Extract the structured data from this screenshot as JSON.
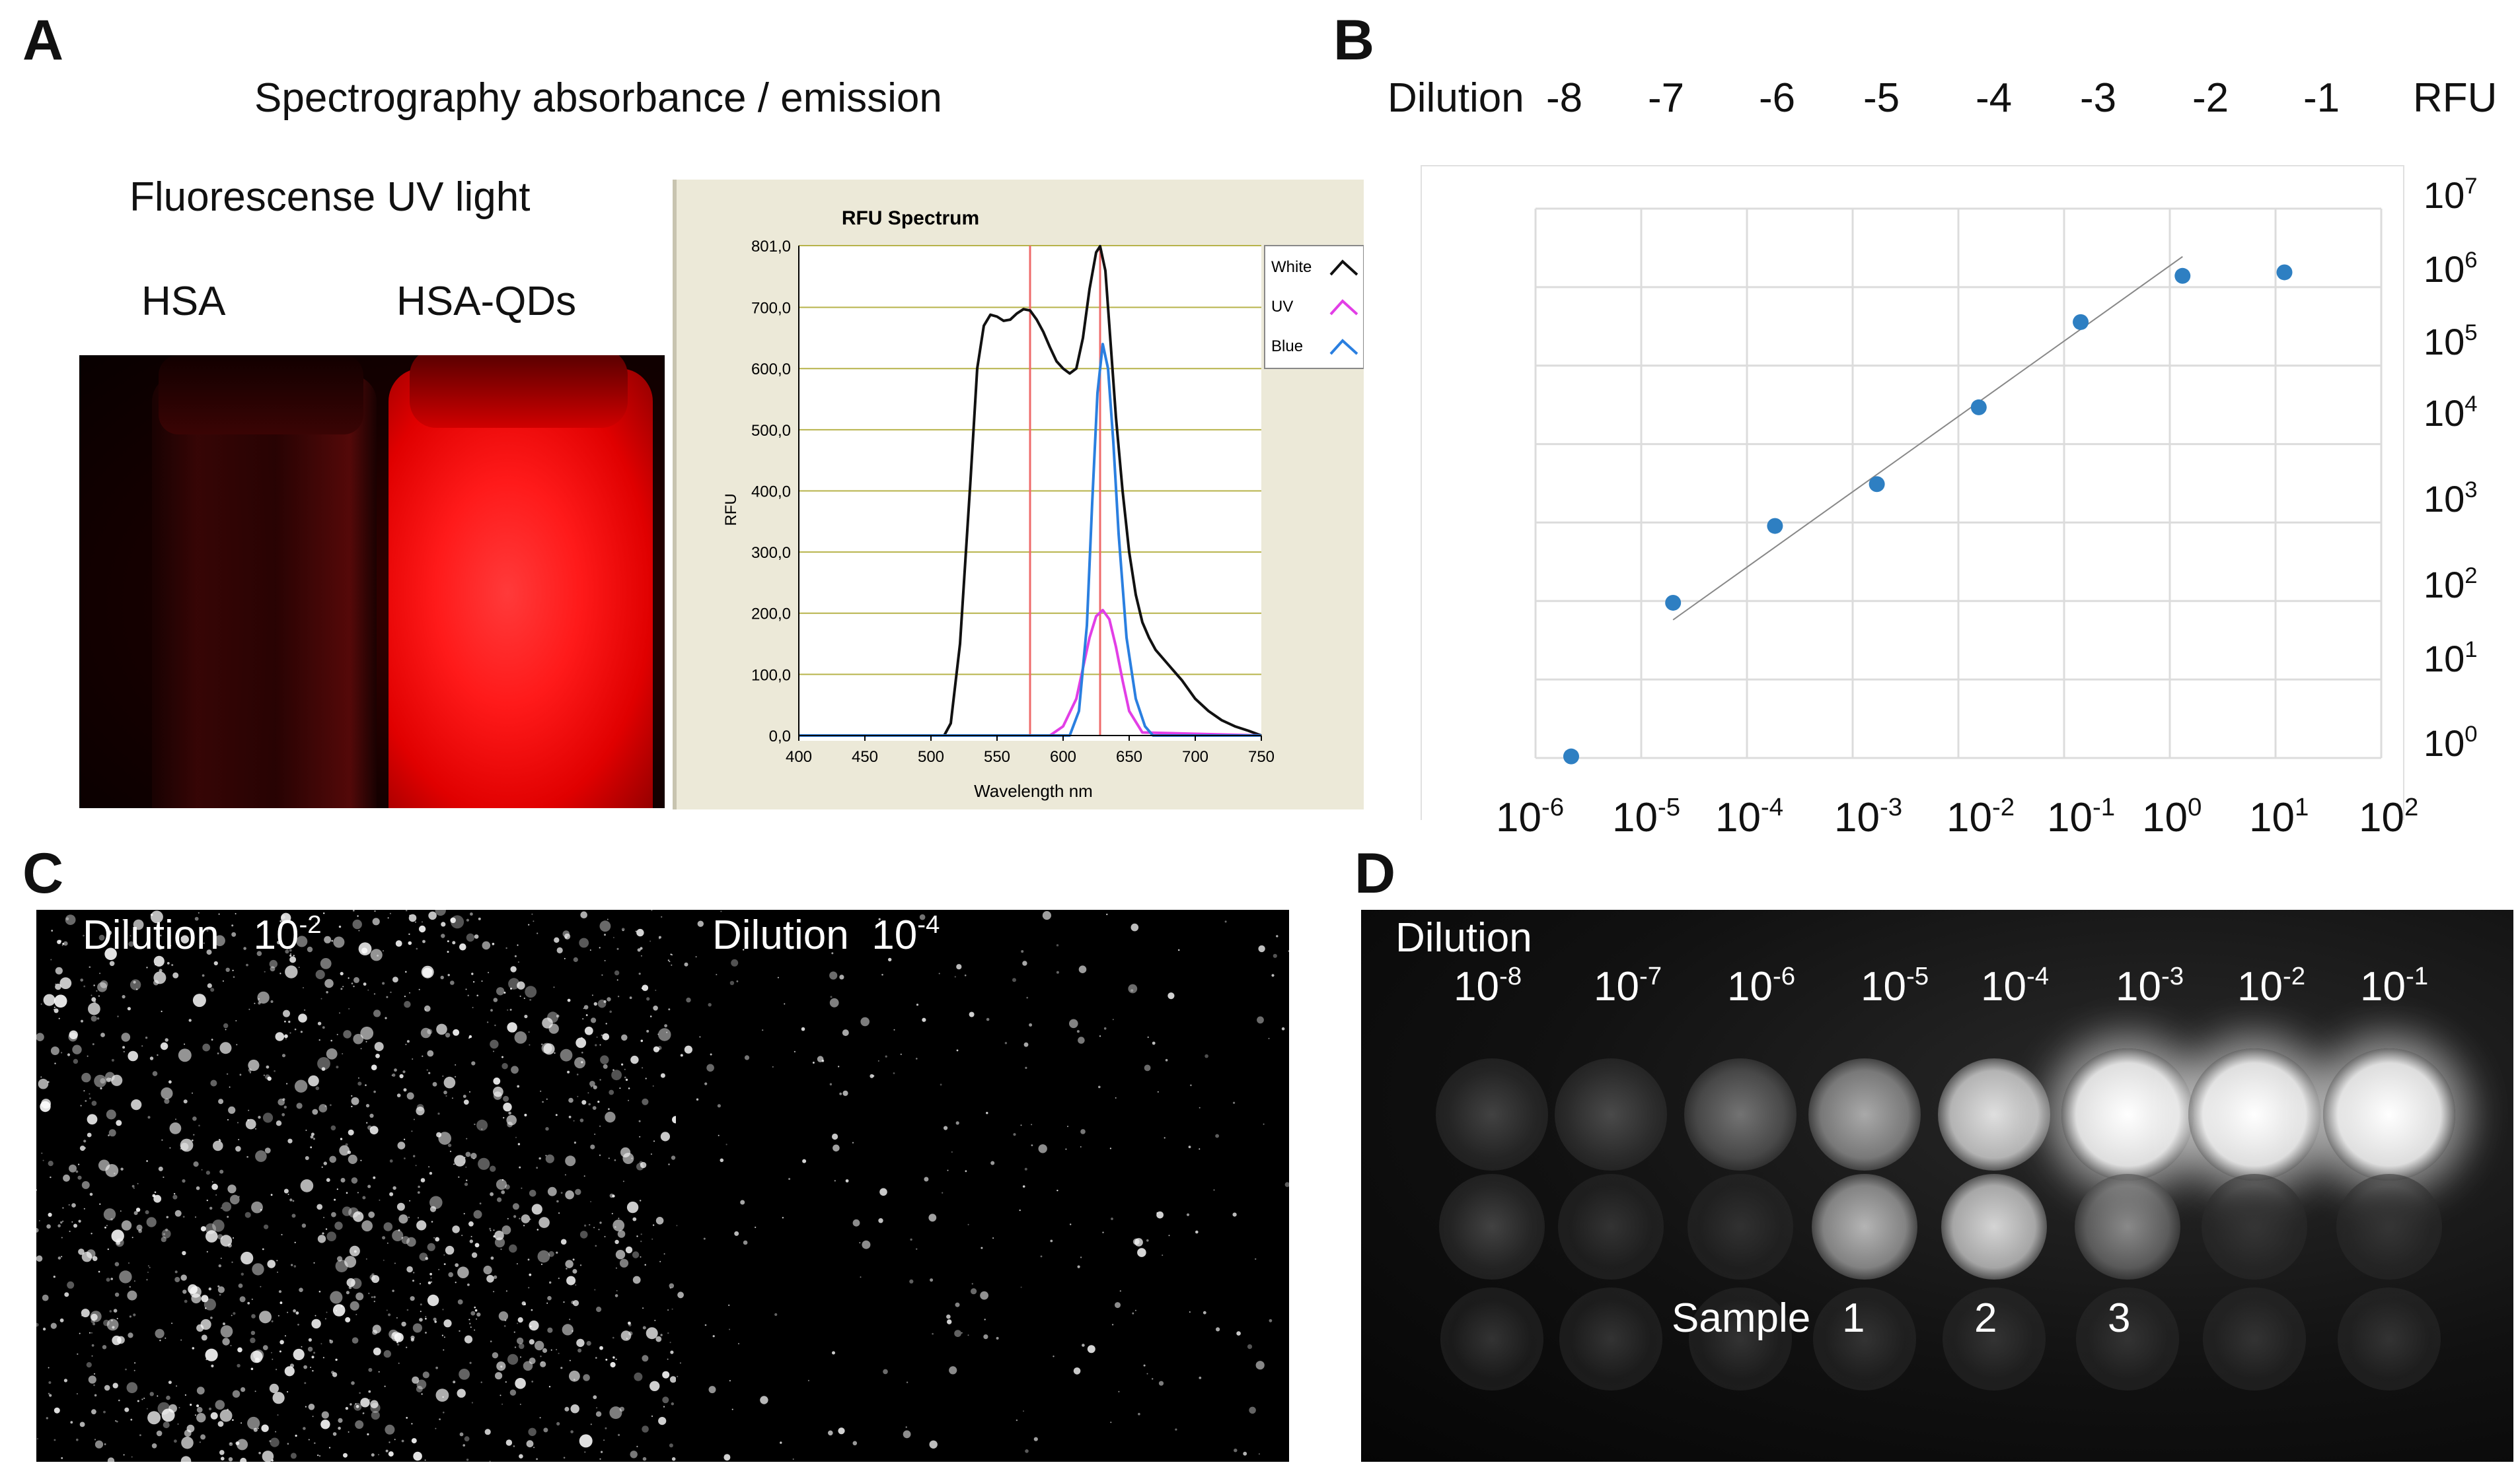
{
  "panels": {
    "a": "A",
    "b": "B",
    "c": "C",
    "d": "D"
  },
  "panel_a": {
    "heading": "Spectrography absorbance / emission",
    "photo_title": "Fluorescense UV light",
    "vial_labels": [
      "HSA",
      "HSA-QDs"
    ]
  },
  "chart_data": [
    {
      "type": "line",
      "title": "RFU Spectrum",
      "xlabel": "Wavelength nm",
      "ylabel": "RFU",
      "xlim": [
        400,
        750
      ],
      "ylim": [
        0,
        801
      ],
      "x_ticks": [
        "400",
        "450",
        "500",
        "550",
        "600",
        "650",
        "700",
        "750"
      ],
      "y_ticks": [
        "0,0",
        "100,0",
        "200,0",
        "300,0",
        "400,0",
        "500,0",
        "600,0",
        "700,0",
        "801,0"
      ],
      "vertical_markers": [
        575,
        628
      ],
      "legend": {
        "placement": "top-right",
        "entries": [
          "White",
          "UV",
          "Blue"
        ]
      },
      "series": [
        {
          "name": "White",
          "color": "#111111",
          "x": [
            400,
            510,
            515,
            522,
            530,
            535,
            540,
            545,
            550,
            555,
            560,
            565,
            570,
            575,
            580,
            585,
            590,
            595,
            600,
            605,
            610,
            615,
            620,
            625,
            628,
            632,
            636,
            640,
            645,
            650,
            655,
            660,
            665,
            670,
            680,
            690,
            700,
            710,
            720,
            730,
            740,
            750
          ],
          "y": [
            0,
            0,
            20,
            150,
            420,
            600,
            670,
            688,
            685,
            678,
            680,
            690,
            697,
            695,
            680,
            660,
            635,
            612,
            600,
            592,
            600,
            650,
            730,
            790,
            800,
            760,
            640,
            520,
            400,
            300,
            230,
            185,
            160,
            140,
            115,
            90,
            60,
            40,
            25,
            15,
            8,
            0
          ]
        },
        {
          "name": "UV",
          "color": "#e23ee6",
          "x": [
            400,
            590,
            600,
            610,
            615,
            620,
            625,
            630,
            635,
            640,
            645,
            650,
            660,
            750
          ],
          "y": [
            0,
            0,
            15,
            60,
            110,
            160,
            195,
            205,
            190,
            145,
            90,
            40,
            5,
            0
          ]
        },
        {
          "name": "Blue",
          "color": "#2a7fe0",
          "x": [
            400,
            605,
            612,
            618,
            622,
            626,
            630,
            634,
            638,
            642,
            648,
            655,
            662,
            668,
            750
          ],
          "y": [
            0,
            0,
            40,
            180,
            380,
            560,
            640,
            600,
            480,
            330,
            160,
            60,
            15,
            0,
            0
          ]
        }
      ]
    },
    {
      "type": "scatter",
      "xscale": "log",
      "yscale": "log",
      "x_ticks": [
        "-6",
        "-5",
        "-4",
        "-3",
        "-2",
        "-1",
        "0",
        "1",
        "2"
      ],
      "top_axis_label": "Dilution",
      "top_ticks": [
        "-8",
        "-7",
        "-6",
        "-5",
        "-4",
        "-3",
        "-2",
        "-1"
      ],
      "right_axis_label": "RFU",
      "y_ticks": [
        "7",
        "6",
        "5",
        "4",
        "3",
        "2",
        "1",
        "0"
      ],
      "grid": true,
      "points": [
        {
          "x": 1e-06,
          "y": 1
        },
        {
          "x": 1e-05,
          "y": 100
        },
        {
          "x": 0.0001,
          "y": 1000
        },
        {
          "x": 0.001,
          "y": 3500
        },
        {
          "x": 0.01,
          "y": 35000
        },
        {
          "x": 0.1,
          "y": 450000
        },
        {
          "x": 1.0,
          "y": 1800000
        },
        {
          "x": 10.0,
          "y": 2000000
        }
      ],
      "trendline": {
        "x": [
          1e-05,
          1.0
        ],
        "y": [
          60,
          3200000
        ]
      }
    }
  ],
  "panel_b": {
    "top_word": "Dilution",
    "right_word": "RFU",
    "exp_base": "10"
  },
  "panel_c": {
    "left": {
      "word": "Dilution",
      "base": "10",
      "exp": "-2"
    },
    "right": {
      "word": "Dilution",
      "base": "10",
      "exp": "-4"
    }
  },
  "panel_d": {
    "word": "Dilution",
    "base": "10",
    "exps": [
      "-8",
      "-7",
      "-6",
      "-5",
      "-4",
      "-3",
      "-2",
      "-1"
    ],
    "sample_word": "Sample",
    "sample_nums": [
      "1",
      "2",
      "3"
    ]
  }
}
